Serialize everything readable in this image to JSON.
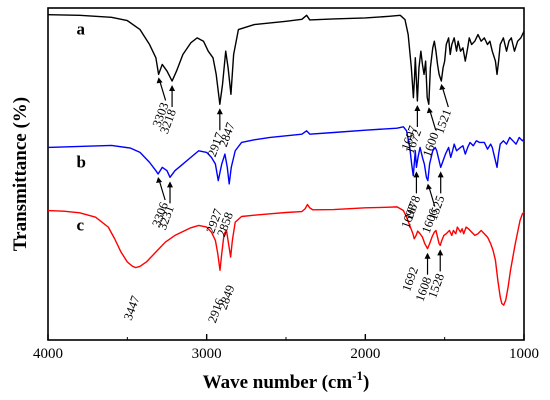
{
  "chart_data": {
    "type": "line",
    "xlabel": "Wave number (cm",
    "xlabel_sup": "-1",
    "xlabel_end": ")",
    "ylabel": "Transmittance (%)",
    "xlim": [
      4000,
      1000
    ],
    "x_reversed": true,
    "x_ticks": [
      "4000",
      "3000",
      "2000",
      "1000"
    ],
    "x_tick_values": [
      4000,
      3000,
      2000,
      1000
    ],
    "grid": false,
    "series": [
      {
        "name": "a",
        "color": "#000000",
        "points": [
          [
            4000,
            98
          ],
          [
            3800,
            97.8
          ],
          [
            3600,
            97.2
          ],
          [
            3500,
            96.2
          ],
          [
            3420,
            93.5
          ],
          [
            3360,
            89
          ],
          [
            3320,
            85
          ],
          [
            3303,
            80
          ],
          [
            3280,
            83
          ],
          [
            3250,
            81
          ],
          [
            3218,
            78
          ],
          [
            3190,
            81
          ],
          [
            3150,
            86
          ],
          [
            3100,
            89.5
          ],
          [
            3060,
            91
          ],
          [
            3020,
            90
          ],
          [
            2990,
            87
          ],
          [
            2960,
            85
          ],
          [
            2940,
            80
          ],
          [
            2917,
            71
          ],
          [
            2900,
            77
          ],
          [
            2880,
            87
          ],
          [
            2865,
            82
          ],
          [
            2847,
            74
          ],
          [
            2830,
            86
          ],
          [
            2800,
            93.5
          ],
          [
            2700,
            95
          ],
          [
            2600,
            95.5
          ],
          [
            2500,
            96
          ],
          [
            2400,
            96.6
          ],
          [
            2370,
            97.8
          ],
          [
            2350,
            96.4
          ],
          [
            2200,
            96.7
          ],
          [
            2000,
            97
          ],
          [
            1850,
            97.5
          ],
          [
            1780,
            97.8
          ],
          [
            1750,
            96.5
          ],
          [
            1730,
            92
          ],
          [
            1710,
            82
          ],
          [
            1697,
            73
          ],
          [
            1690,
            79
          ],
          [
            1685,
            85
          ],
          [
            1672,
            72
          ],
          [
            1662,
            82
          ],
          [
            1650,
            87
          ],
          [
            1640,
            83
          ],
          [
            1630,
            80
          ],
          [
            1620,
            84
          ],
          [
            1610,
            73
          ],
          [
            1600,
            71
          ],
          [
            1590,
            82
          ],
          [
            1575,
            88
          ],
          [
            1565,
            90
          ],
          [
            1555,
            87
          ],
          [
            1545,
            83
          ],
          [
            1535,
            80
          ],
          [
            1521,
            78
          ],
          [
            1510,
            82
          ],
          [
            1500,
            84
          ],
          [
            1490,
            89
          ],
          [
            1475,
            91
          ],
          [
            1465,
            86
          ],
          [
            1455,
            89
          ],
          [
            1440,
            91
          ],
          [
            1425,
            87
          ],
          [
            1415,
            90
          ],
          [
            1400,
            87
          ],
          [
            1385,
            88
          ],
          [
            1370,
            84
          ],
          [
            1355,
            88
          ],
          [
            1345,
            91
          ],
          [
            1330,
            89
          ],
          [
            1310,
            90
          ],
          [
            1290,
            92
          ],
          [
            1270,
            90
          ],
          [
            1250,
            91
          ],
          [
            1230,
            89
          ],
          [
            1215,
            90
          ],
          [
            1200,
            87
          ],
          [
            1180,
            84
          ],
          [
            1170,
            80
          ],
          [
            1160,
            84
          ],
          [
            1150,
            89
          ],
          [
            1130,
            91
          ],
          [
            1110,
            87
          ],
          [
            1095,
            90
          ],
          [
            1080,
            91
          ],
          [
            1060,
            87
          ],
          [
            1040,
            90
          ],
          [
            1020,
            91
          ],
          [
            1000,
            93
          ]
        ]
      },
      {
        "name": "b",
        "color": "#0000ff",
        "points": [
          [
            4000,
            58
          ],
          [
            3800,
            58.3
          ],
          [
            3600,
            58.6
          ],
          [
            3480,
            57.8
          ],
          [
            3420,
            56.5
          ],
          [
            3360,
            53.5
          ],
          [
            3320,
            51
          ],
          [
            3306,
            50
          ],
          [
            3280,
            52
          ],
          [
            3250,
            51
          ],
          [
            3231,
            49
          ],
          [
            3200,
            51
          ],
          [
            3150,
            53
          ],
          [
            3100,
            55
          ],
          [
            3050,
            57
          ],
          [
            3000,
            56.5
          ],
          [
            2970,
            55
          ],
          [
            2945,
            53
          ],
          [
            2927,
            48
          ],
          [
            2905,
            53
          ],
          [
            2885,
            56
          ],
          [
            2870,
            52
          ],
          [
            2858,
            47
          ],
          [
            2845,
            52
          ],
          [
            2820,
            57
          ],
          [
            2780,
            59.5
          ],
          [
            2700,
            60.3
          ],
          [
            2600,
            61
          ],
          [
            2500,
            61.5
          ],
          [
            2400,
            62
          ],
          [
            2370,
            63
          ],
          [
            2350,
            62
          ],
          [
            2200,
            62.5
          ],
          [
            2000,
            63.2
          ],
          [
            1800,
            63.8
          ],
          [
            1760,
            64.2
          ],
          [
            1740,
            63
          ],
          [
            1720,
            58
          ],
          [
            1708,
            53
          ],
          [
            1698,
            49.5
          ],
          [
            1690,
            54
          ],
          [
            1685,
            57
          ],
          [
            1678,
            52
          ],
          [
            1668,
            55
          ],
          [
            1655,
            58
          ],
          [
            1640,
            55
          ],
          [
            1628,
            53
          ],
          [
            1615,
            49
          ],
          [
            1606,
            48
          ],
          [
            1595,
            53
          ],
          [
            1575,
            57
          ],
          [
            1560,
            58
          ],
          [
            1550,
            57
          ],
          [
            1540,
            55
          ],
          [
            1525,
            52
          ],
          [
            1510,
            54
          ],
          [
            1495,
            56
          ],
          [
            1475,
            58
          ],
          [
            1462,
            55
          ],
          [
            1450,
            57
          ],
          [
            1440,
            59
          ],
          [
            1425,
            57
          ],
          [
            1400,
            58
          ],
          [
            1385,
            58.5
          ],
          [
            1370,
            56
          ],
          [
            1355,
            58
          ],
          [
            1340,
            59.5
          ],
          [
            1320,
            58.5
          ],
          [
            1300,
            60
          ],
          [
            1280,
            59.5
          ],
          [
            1250,
            59.5
          ],
          [
            1230,
            57.5
          ],
          [
            1210,
            59
          ],
          [
            1200,
            58
          ],
          [
            1185,
            55
          ],
          [
            1170,
            52
          ],
          [
            1160,
            56
          ],
          [
            1150,
            59
          ],
          [
            1130,
            60
          ],
          [
            1110,
            59
          ],
          [
            1090,
            61
          ],
          [
            1070,
            60
          ],
          [
            1050,
            59
          ],
          [
            1030,
            61
          ],
          [
            1010,
            60
          ],
          [
            1000,
            60.5
          ]
        ]
      },
      {
        "name": "c",
        "color": "#ff0000",
        "points": [
          [
            4000,
            39
          ],
          [
            3900,
            38.8
          ],
          [
            3800,
            38.3
          ],
          [
            3700,
            37
          ],
          [
            3620,
            34
          ],
          [
            3580,
            30.5
          ],
          [
            3540,
            26.5
          ],
          [
            3500,
            23.5
          ],
          [
            3470,
            22.3
          ],
          [
            3447,
            21.8
          ],
          [
            3420,
            22.2
          ],
          [
            3380,
            23.5
          ],
          [
            3320,
            26.5
          ],
          [
            3260,
            29.5
          ],
          [
            3200,
            31.5
          ],
          [
            3100,
            33.8
          ],
          [
            3050,
            34.5
          ],
          [
            3000,
            34
          ],
          [
            2970,
            32.5
          ],
          [
            2945,
            30
          ],
          [
            2930,
            26
          ],
          [
            2916,
            21
          ],
          [
            2905,
            26
          ],
          [
            2890,
            32
          ],
          [
            2875,
            33
          ],
          [
            2862,
            29
          ],
          [
            2849,
            25
          ],
          [
            2838,
            30
          ],
          [
            2820,
            35.5
          ],
          [
            2780,
            37.2
          ],
          [
            2700,
            37.6
          ],
          [
            2600,
            38
          ],
          [
            2500,
            38.4
          ],
          [
            2400,
            38.7
          ],
          [
            2380,
            39.5
          ],
          [
            2365,
            40.8
          ],
          [
            2350,
            39.8
          ],
          [
            2330,
            39.2
          ],
          [
            2200,
            39.3
          ],
          [
            2000,
            39.8
          ],
          [
            1850,
            40
          ],
          [
            1800,
            40.1
          ],
          [
            1760,
            39
          ],
          [
            1740,
            37
          ],
          [
            1720,
            34.5
          ],
          [
            1700,
            32
          ],
          [
            1692,
            30.5
          ],
          [
            1680,
            31.5
          ],
          [
            1670,
            32.8
          ],
          [
            1655,
            32
          ],
          [
            1640,
            31
          ],
          [
            1625,
            29
          ],
          [
            1608,
            27.5
          ],
          [
            1595,
            29
          ],
          [
            1580,
            31
          ],
          [
            1565,
            32.5
          ],
          [
            1555,
            33
          ],
          [
            1545,
            31
          ],
          [
            1535,
            29
          ],
          [
            1528,
            28.5
          ],
          [
            1518,
            30
          ],
          [
            1505,
            31.5
          ],
          [
            1490,
            32
          ],
          [
            1470,
            33
          ],
          [
            1455,
            31.5
          ],
          [
            1445,
            33
          ],
          [
            1430,
            32
          ],
          [
            1420,
            34
          ],
          [
            1400,
            32.5
          ],
          [
            1390,
            33.5
          ],
          [
            1380,
            32
          ],
          [
            1365,
            34
          ],
          [
            1350,
            33.5
          ],
          [
            1330,
            32.5
          ],
          [
            1310,
            31.5
          ],
          [
            1290,
            32
          ],
          [
            1270,
            33
          ],
          [
            1250,
            32
          ],
          [
            1230,
            31
          ],
          [
            1210,
            29
          ],
          [
            1195,
            27
          ],
          [
            1180,
            24
          ],
          [
            1165,
            18
          ],
          [
            1150,
            13
          ],
          [
            1140,
            11
          ],
          [
            1128,
            10.5
          ],
          [
            1115,
            12
          ],
          [
            1100,
            16
          ],
          [
            1085,
            21
          ],
          [
            1070,
            25
          ],
          [
            1055,
            29
          ],
          [
            1040,
            32.5
          ],
          [
            1025,
            36
          ],
          [
            1010,
            38
          ],
          [
            1000,
            38.5
          ]
        ]
      }
    ],
    "panel_labels": [
      {
        "text": "a",
        "x": 3820,
        "y": 92
      },
      {
        "text": "b",
        "x": 3820,
        "y": 52
      },
      {
        "text": "c",
        "x": 3820,
        "y": 33
      }
    ],
    "annotations": [
      {
        "text": "3303",
        "x": 3303,
        "series": "a",
        "arrow": "diag"
      },
      {
        "text": "3218",
        "x": 3218,
        "series": "a",
        "arrow": "down"
      },
      {
        "text": "2917",
        "x": 2917,
        "series": "a",
        "arrow": "down"
      },
      {
        "text": "2847",
        "x": 2847,
        "series": "a",
        "arrow": "none"
      },
      {
        "text": "1697",
        "x": 1697,
        "series": "a",
        "arrow": "none"
      },
      {
        "text": "1672",
        "x": 1672,
        "series": "a",
        "arrow": "down"
      },
      {
        "text": "1600",
        "x": 1600,
        "series": "a",
        "arrow": "diag"
      },
      {
        "text": "1521",
        "x": 1521,
        "series": "a",
        "arrow": "diag"
      },
      {
        "text": "3306",
        "x": 3306,
        "series": "b",
        "arrow": "diag"
      },
      {
        "text": "3231",
        "x": 3231,
        "series": "b",
        "arrow": "down"
      },
      {
        "text": "2927",
        "x": 2927,
        "series": "b",
        "arrow": "none"
      },
      {
        "text": "2858",
        "x": 2858,
        "series": "b",
        "arrow": "none"
      },
      {
        "text": "1698",
        "x": 1698,
        "series": "b",
        "arrow": "none"
      },
      {
        "text": "1678",
        "x": 1678,
        "series": "b",
        "arrow": "down"
      },
      {
        "text": "1606",
        "x": 1606,
        "series": "b",
        "arrow": "diag"
      },
      {
        "text": "1525",
        "x": 1525,
        "series": "b",
        "arrow": "down"
      },
      {
        "text": "3447",
        "x": 3447,
        "series": "c",
        "arrow": "none"
      },
      {
        "text": "2916",
        "x": 2916,
        "series": "c",
        "arrow": "none"
      },
      {
        "text": "2849",
        "x": 2849,
        "series": "c",
        "arrow": "none"
      },
      {
        "text": "1692",
        "x": 1692,
        "series": "c",
        "arrow": "none"
      },
      {
        "text": "1608",
        "x": 1608,
        "series": "c",
        "arrow": "down"
      },
      {
        "text": "1528",
        "x": 1528,
        "series": "c",
        "arrow": "down"
      }
    ]
  }
}
